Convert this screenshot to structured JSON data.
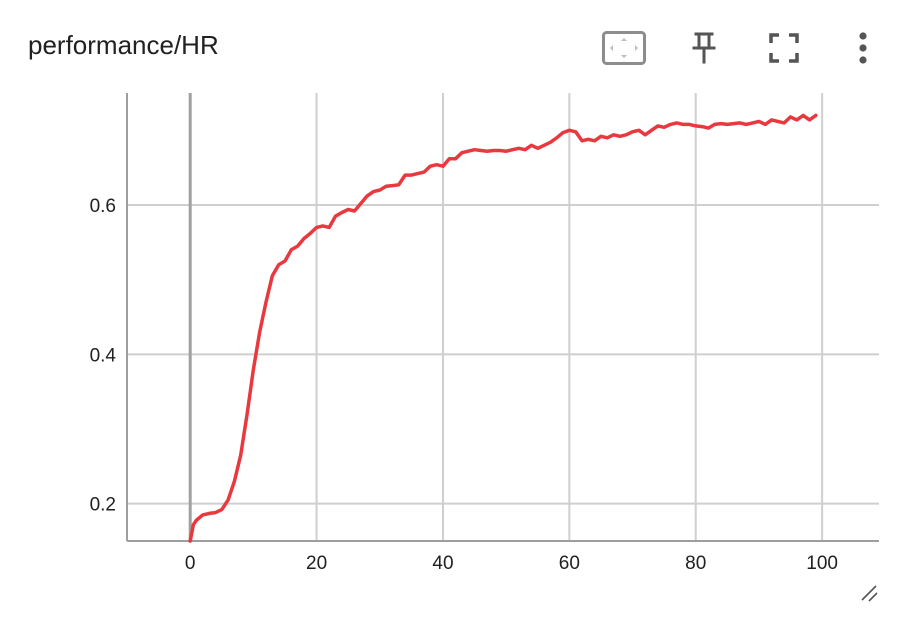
{
  "title": "performance/HR",
  "toolbar": {
    "fit_icon": "fit-domain-icon",
    "pin_icon": "pin-icon",
    "fullscreen_icon": "fullscreen-icon",
    "more_icon": "more-vert-icon"
  },
  "colors": {
    "line": "#e8393e",
    "grid": "#cfcfcf",
    "axis": "#9e9e9e",
    "zero_line": "#a0a0a0"
  },
  "chart_data": {
    "type": "line",
    "title": "performance/HR",
    "xlabel": "",
    "ylabel": "",
    "xlim": [
      -10,
      109
    ],
    "ylim": [
      0.15,
      0.75
    ],
    "xticks": [
      0,
      20,
      40,
      60,
      80,
      100
    ],
    "yticks": [
      0.2,
      0.4,
      0.6
    ],
    "xtick_labels": [
      "0",
      "20",
      "40",
      "60",
      "80",
      "100"
    ],
    "ytick_labels": [
      "0.2",
      "0.4",
      "0.6"
    ],
    "grid": true,
    "legend": "none",
    "series": [
      {
        "x": [
          0,
          0.5,
          1,
          2,
          3,
          4,
          5,
          6,
          7,
          8,
          9,
          10,
          11,
          12,
          13,
          14,
          15,
          16,
          17,
          18,
          19,
          20,
          21,
          22,
          23,
          24,
          25,
          26,
          27,
          28,
          29,
          30,
          31,
          32,
          33,
          34,
          35,
          36,
          37,
          38,
          39,
          40,
          41,
          42,
          43,
          44,
          45,
          46,
          47,
          48,
          49,
          50,
          51,
          52,
          53,
          54,
          55,
          56,
          57,
          58,
          59,
          60,
          61,
          62,
          63,
          64,
          65,
          66,
          67,
          68,
          69,
          70,
          71,
          72,
          73,
          74,
          75,
          76,
          77,
          78,
          79,
          80,
          81,
          82,
          83,
          84,
          85,
          86,
          87,
          88,
          89,
          90,
          91,
          92,
          93,
          94,
          95,
          96,
          97,
          98,
          99
        ],
        "y": [
          0.15,
          0.172,
          0.178,
          0.185,
          0.187,
          0.188,
          0.192,
          0.205,
          0.23,
          0.265,
          0.32,
          0.38,
          0.43,
          0.47,
          0.505,
          0.52,
          0.525,
          0.54,
          0.545,
          0.555,
          0.562,
          0.57,
          0.572,
          0.57,
          0.585,
          0.59,
          0.594,
          0.592,
          0.602,
          0.612,
          0.618,
          0.62,
          0.625,
          0.626,
          0.627,
          0.64,
          0.64,
          0.642,
          0.644,
          0.652,
          0.654,
          0.652,
          0.662,
          0.662,
          0.67,
          0.672,
          0.674,
          0.673,
          0.672,
          0.673,
          0.673,
          0.672,
          0.674,
          0.676,
          0.674,
          0.68,
          0.676,
          0.68,
          0.684,
          0.69,
          0.697,
          0.7,
          0.698,
          0.686,
          0.688,
          0.686,
          0.692,
          0.69,
          0.694,
          0.692,
          0.694,
          0.698,
          0.7,
          0.694,
          0.7,
          0.706,
          0.704,
          0.708,
          0.71,
          0.708,
          0.708,
          0.706,
          0.705,
          0.703,
          0.708,
          0.709,
          0.708,
          0.709,
          0.71,
          0.708,
          0.71,
          0.712,
          0.708,
          0.714,
          0.712,
          0.71,
          0.718,
          0.714,
          0.72,
          0.714,
          0.72
        ]
      }
    ]
  }
}
